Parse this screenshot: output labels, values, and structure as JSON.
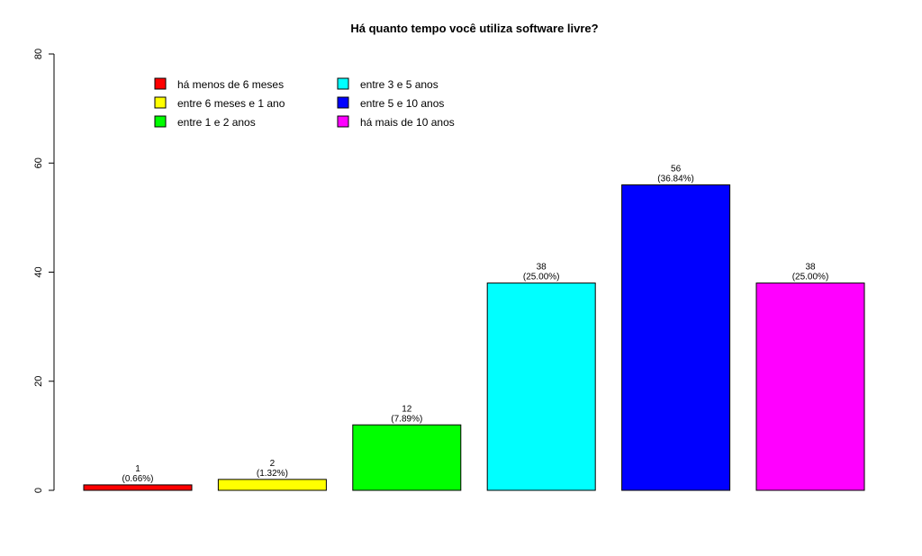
{
  "chart_data": {
    "type": "bar",
    "title": "Há quanto tempo você utiliza software livre?",
    "categories": [
      "há menos de 6 meses",
      "entre 6 meses e 1 ano",
      "entre 1 e 2 anos",
      "entre 3 e 5 anos",
      "entre 5 e 10 anos",
      "há mais de 10 anos"
    ],
    "values": [
      1,
      2,
      12,
      38,
      56,
      38
    ],
    "percent_labels": [
      "(0.66%)",
      "(1.32%)",
      "(7.89%)",
      "(25.00%)",
      "(36.84%)",
      "(25.00%)"
    ],
    "colors": [
      "#ff0000",
      "#ffff00",
      "#00ff00",
      "#00ffff",
      "#0000ff",
      "#ff00ff"
    ],
    "ylim": [
      0,
      80
    ],
    "yticks": [
      0,
      20,
      40,
      60,
      80
    ],
    "xlabel": "",
    "ylabel": "",
    "grid": false,
    "legend_position": "top-left"
  }
}
